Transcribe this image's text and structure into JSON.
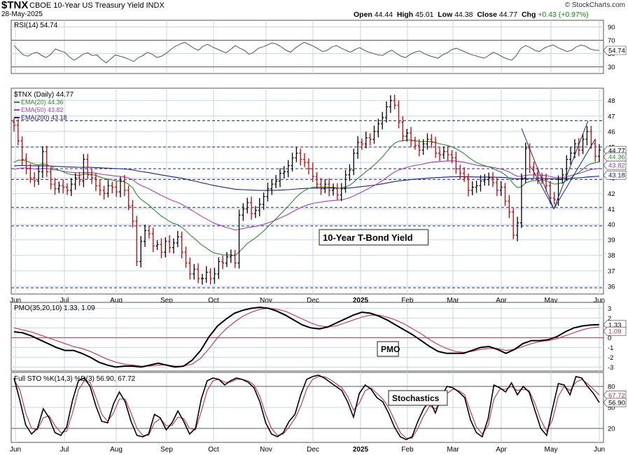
{
  "header": {
    "symbol": "$TNX",
    "name": "CBOE 10-Year US Treasury Yield INDX",
    "date": "28-May-2025",
    "open_label": "Open",
    "open": "44.44",
    "high_label": "High",
    "high": "45.01",
    "low_label": "Low",
    "low": "44.38",
    "close_label": "Close",
    "close": "44.77",
    "chg_label": "Chg",
    "chg": "+0.43 (+0.97%)",
    "credit": "© StockCharts.com"
  },
  "colors": {
    "up": "#000000",
    "down": "#cc0000",
    "ema20": "#2e8b2e",
    "ema50": "#a040c0",
    "ema200": "#1a237e",
    "pmo": "#000000",
    "pmo_signal": "#c03050",
    "stoch_k": "#000000",
    "stoch_d": "#c03050",
    "grid": "#c8d4e8",
    "dashed": "#1a2a80"
  },
  "chart_data": [
    {
      "panel": "rsi",
      "type": "line",
      "legend": "RSI(14) 54.74",
      "current": "54.74",
      "ylim": [
        20,
        100
      ],
      "yticks": [
        "90",
        "70",
        "50",
        "30"
      ],
      "ref_lines": [
        70,
        30
      ],
      "series": [
        {
          "name": "RSI(14)",
          "values": [
            62,
            55,
            48,
            46,
            50,
            52,
            47,
            44,
            49,
            57,
            54,
            52,
            45,
            40,
            44,
            49,
            51,
            47,
            48,
            41,
            36,
            42,
            48,
            46,
            44,
            41,
            38,
            44,
            47,
            52,
            49,
            44,
            46,
            50,
            56,
            61,
            64,
            67,
            63,
            58,
            55,
            61,
            64,
            60,
            57,
            54,
            51,
            56,
            62,
            58,
            55,
            49,
            52,
            58,
            60,
            63,
            66,
            64,
            60,
            55,
            52,
            58,
            63,
            67,
            64,
            61,
            57,
            53,
            55,
            60,
            62,
            58,
            55,
            52,
            56,
            59,
            55,
            52,
            50,
            48,
            47,
            52,
            55,
            50,
            46,
            44,
            49,
            52,
            54,
            50,
            47,
            45,
            43,
            48,
            51,
            56,
            58,
            55,
            52,
            49,
            47,
            45,
            43,
            47,
            52,
            49,
            45,
            42,
            40,
            47,
            58,
            62,
            59,
            55,
            53,
            58,
            61,
            63,
            59,
            56,
            53,
            55,
            60,
            63,
            61,
            57,
            55,
            55
          ]
        }
      ]
    },
    {
      "panel": "price",
      "type": "ohlc",
      "legend_title": "$TNX (Daily) 44.77",
      "legend_ema20": "EMA(20) 44.36",
      "legend_ema50": "EMA(50) 43.82",
      "legend_ema200": "EMA(200) 43.18",
      "annotation": "10-Year T-Bond Yield",
      "ylim": [
        35.5,
        48.8
      ],
      "yticks": [
        "48",
        "47",
        "46",
        "45",
        "44",
        "43",
        "42",
        "41",
        "40",
        "39",
        "38",
        "37",
        "36"
      ],
      "hlines": [
        46.7,
        45.0,
        43.6,
        42.9,
        41.1,
        39.9,
        35.9
      ],
      "price_tags": [
        "44.77",
        "44.36",
        "43.82",
        "43.18"
      ],
      "xticks": [
        "Jun",
        "Jul",
        "Aug",
        "Sep",
        "Oct",
        "Nov",
        "Dec",
        "2025",
        "Feb",
        "Mar",
        "Apr",
        "May",
        "Jun"
      ],
      "closes": [
        46.4,
        45.4,
        44.2,
        43.6,
        43.0,
        42.8,
        43.4,
        44.7,
        43.4,
        42.6,
        42.3,
        42.5,
        42.4,
        42.2,
        42.6,
        43.0,
        42.8,
        44.2,
        43.2,
        43.0,
        42.5,
        42.2,
        42.0,
        42.5,
        42.4,
        42.1,
        42.8,
        42.2,
        41.2,
        40.2,
        37.6,
        38.9,
        39.6,
        39.4,
        38.6,
        38.7,
        38.2,
        38.9,
        38.5,
        38.8,
        39.2,
        38.2,
        37.5,
        36.8,
        37.1,
        36.5,
        36.5,
        36.9,
        36.5,
        36.8,
        37.6,
        37.5,
        37.9,
        38.0,
        37.5,
        40.6,
        41.0,
        41.4,
        40.7,
        40.9,
        41.3,
        41.8,
        42.3,
        42.6,
        42.8,
        43.3,
        43.4,
        43.8,
        44.3,
        44.6,
        44.2,
        44.0,
        43.6,
        43.1,
        42.6,
        42.3,
        42.6,
        42.2,
        42.3,
        41.9,
        42.3,
        43.2,
        43.5,
        44.6,
        45.3,
        45.2,
        45.6,
        45.5,
        46.0,
        46.5,
        46.9,
        47.6,
        48.0,
        47.7,
        46.6,
        45.7,
        45.9,
        45.4,
        45.1,
        44.8,
        45.2,
        45.5,
        45.3,
        44.6,
        44.5,
        44.7,
        44.5,
        44.3,
        43.6,
        43.3,
        43.0,
        42.2,
        42.4,
        42.5,
        42.8,
        42.9,
        43.0,
        42.7,
        42.2,
        42.4,
        41.5,
        40.8,
        39.3,
        40.1,
        43.0,
        44.9,
        43.7,
        43.3,
        43.0,
        42.9,
        42.5,
        41.7,
        41.6,
        42.9,
        43.2,
        44.2,
        44.6,
        45.2,
        44.8,
        45.5,
        46.0,
        45.2,
        44.4,
        44.8
      ]
    },
    {
      "panel": "pmo",
      "type": "line",
      "legend": "PMO(35,20,10) 1.33, 1.09",
      "annotation": "PMO",
      "ylim": [
        -3.4,
        3.6
      ],
      "yticks": [
        "3",
        "2",
        "1",
        "0",
        "-1",
        "-2",
        "-3"
      ],
      "tags": [
        "1.33",
        "1.09"
      ],
      "series": [
        {
          "name": "PMO",
          "values": [
            0.6,
            0.5,
            0.2,
            -0.2,
            -0.6,
            -1.0,
            -1.3,
            -1.3,
            -1.6,
            -2.0,
            -2.5,
            -2.8,
            -3.0,
            -2.9,
            -2.9,
            -3.0,
            -2.8,
            -2.6,
            -2.8,
            -3.0,
            -2.9,
            -2.3,
            -1.3,
            0.1,
            1.2,
            1.9,
            2.5,
            2.8,
            3.0,
            3.1,
            3.0,
            2.7,
            2.3,
            1.8,
            1.3,
            1.0,
            0.9,
            1.1,
            1.5,
            1.9,
            2.3,
            2.6,
            2.5,
            2.2,
            1.8,
            1.3,
            0.8,
            0.3,
            -0.3,
            -0.9,
            -1.4,
            -1.6,
            -1.6,
            -1.6,
            -1.3,
            -1.0,
            -0.9,
            -1.2,
            -1.6,
            -1.2,
            -0.6,
            -0.3,
            -0.3,
            -0.2,
            0.1,
            0.6,
            1.0,
            1.2,
            1.3,
            1.33
          ]
        },
        {
          "name": "Signal",
          "values": [
            1.0,
            0.8,
            0.6,
            0.3,
            0.0,
            -0.3,
            -0.6,
            -0.9,
            -1.1,
            -1.4,
            -1.8,
            -2.2,
            -2.5,
            -2.7,
            -2.8,
            -2.9,
            -2.9,
            -2.8,
            -2.8,
            -2.9,
            -2.9,
            -2.7,
            -2.1,
            -1.1,
            0.0,
            0.9,
            1.6,
            2.2,
            2.6,
            2.9,
            3.0,
            2.9,
            2.7,
            2.3,
            1.9,
            1.5,
            1.2,
            1.1,
            1.2,
            1.5,
            1.8,
            2.1,
            2.3,
            2.3,
            2.1,
            1.8,
            1.4,
            0.9,
            0.4,
            -0.2,
            -0.7,
            -1.1,
            -1.4,
            -1.5,
            -1.4,
            -1.2,
            -1.1,
            -1.1,
            -1.3,
            -1.2,
            -0.9,
            -0.6,
            -0.4,
            -0.3,
            -0.1,
            0.2,
            0.5,
            0.8,
            1.0,
            1.09
          ]
        }
      ]
    },
    {
      "panel": "stoch",
      "type": "line",
      "legend": "Full STO %K(14,3) %D(3) 56.90, 67.72",
      "annotation": "Stochastics",
      "ylim": [
        0,
        100
      ],
      "yticks": [
        "80",
        "50",
        "20"
      ],
      "tags": [
        "67.72",
        "56.90"
      ],
      "series": [
        {
          "name": "%K",
          "values": [
            92,
            60,
            25,
            12,
            20,
            48,
            35,
            14,
            10,
            22,
            60,
            88,
            92,
            80,
            52,
            30,
            28,
            55,
            72,
            58,
            30,
            10,
            8,
            12,
            40,
            35,
            18,
            28,
            45,
            30,
            12,
            20,
            62,
            88,
            92,
            90,
            82,
            88,
            92,
            90,
            86,
            78,
            58,
            28,
            12,
            8,
            14,
            30,
            40,
            68,
            90,
            94,
            96,
            92,
            86,
            80,
            74,
            58,
            36,
            70,
            82,
            76,
            64,
            58,
            42,
            22,
            8,
            4,
            8,
            30,
            48,
            60,
            42,
            66,
            80,
            78,
            72,
            64,
            32,
            14,
            8,
            34,
            82,
            78,
            72,
            85,
            68,
            80,
            72,
            46,
            20,
            10,
            48,
            84,
            82,
            68,
            94,
            92,
            80,
            70,
            56.9
          ]
        },
        {
          "name": "%D",
          "values": [
            90,
            75,
            42,
            20,
            18,
            35,
            38,
            24,
            14,
            16,
            42,
            75,
            88,
            86,
            64,
            40,
            30,
            42,
            62,
            62,
            42,
            20,
            10,
            10,
            28,
            34,
            24,
            24,
            36,
            34,
            20,
            18,
            44,
            74,
            88,
            90,
            86,
            86,
            90,
            90,
            88,
            82,
            66,
            40,
            20,
            10,
            12,
            22,
            34,
            52,
            76,
            90,
            94,
            94,
            90,
            84,
            78,
            66,
            46,
            56,
            74,
            78,
            70,
            62,
            50,
            32,
            14,
            6,
            6,
            20,
            38,
            52,
            48,
            56,
            70,
            76,
            74,
            68,
            44,
            22,
            12,
            24,
            62,
            76,
            76,
            80,
            74,
            76,
            74,
            56,
            32,
            16,
            32,
            66,
            80,
            74,
            86,
            90,
            84,
            76,
            67.72
          ]
        }
      ]
    }
  ]
}
